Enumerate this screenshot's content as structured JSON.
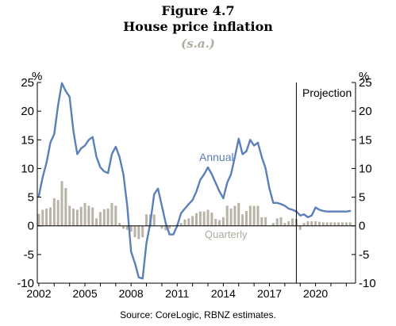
{
  "figure": {
    "number": "Figure 4.7",
    "title": "House price inflation",
    "subtitle": "(s.a.)",
    "source": "Source: CoreLogic, RBNZ estimates."
  },
  "chart_data": {
    "type": "bar+line",
    "ylabel_left": "%",
    "ylabel_right": "%",
    "ylim": [
      -10,
      25
    ],
    "yticks": [
      -10,
      -5,
      0,
      5,
      10,
      15,
      20,
      25
    ],
    "xlim": [
      2001.9,
      2022.6
    ],
    "xticks": [
      2002,
      2005,
      2008,
      2011,
      2014,
      2017,
      2020
    ],
    "xtick_labels": [
      "2002",
      "2005",
      "2008",
      "2011",
      "2014",
      "2017",
      "2020"
    ],
    "projection_start": 2018.75,
    "projection_label": "Projection",
    "grid": false,
    "colors": {
      "annual": "#5b7fb8",
      "quarterly": "#b9b2a6",
      "annual_label": "#5b7fb8",
      "quarterly_label": "#b0a99f"
    },
    "series": [
      {
        "name": "Annual",
        "type": "line",
        "x": [
          2002.0,
          2002.25,
          2002.5,
          2002.75,
          2003.0,
          2003.25,
          2003.5,
          2003.75,
          2004.0,
          2004.25,
          2004.5,
          2004.75,
          2005.0,
          2005.25,
          2005.5,
          2005.75,
          2006.0,
          2006.25,
          2006.5,
          2006.75,
          2007.0,
          2007.25,
          2007.5,
          2007.75,
          2008.0,
          2008.25,
          2008.5,
          2008.75,
          2009.0,
          2009.25,
          2009.5,
          2009.75,
          2010.0,
          2010.25,
          2010.5,
          2010.75,
          2011.0,
          2011.25,
          2011.5,
          2011.75,
          2012.0,
          2012.25,
          2012.5,
          2012.75,
          2013.0,
          2013.25,
          2013.5,
          2013.75,
          2014.0,
          2014.25,
          2014.5,
          2014.75,
          2015.0,
          2015.25,
          2015.5,
          2015.75,
          2016.0,
          2016.25,
          2016.5,
          2016.75,
          2017.0,
          2017.25,
          2017.5,
          2017.75,
          2018.0,
          2018.25,
          2018.5,
          2018.75,
          2019.0,
          2019.25,
          2019.5,
          2019.75,
          2020.0,
          2020.25,
          2020.5,
          2020.75,
          2021.0,
          2021.25,
          2021.5,
          2021.75,
          2022.0,
          2022.25
        ],
        "values": [
          5.2,
          8.5,
          11.0,
          14.5,
          16.0,
          21.0,
          24.9,
          23.5,
          22.5,
          16.5,
          12.5,
          13.5,
          14.0,
          15.0,
          15.5,
          12.0,
          10.2,
          9.5,
          9.2,
          12.5,
          13.8,
          12.0,
          9.0,
          3.5,
          -4.5,
          -6.5,
          -9.0,
          -9.2,
          -3.0,
          0.5,
          5.5,
          6.5,
          3.5,
          0.5,
          -1.5,
          -1.5,
          0.0,
          2.2,
          3.0,
          3.8,
          4.5,
          6.0,
          8.0,
          9.0,
          10.2,
          9.0,
          7.5,
          6.0,
          4.8,
          7.5,
          9.0,
          12.0,
          15.2,
          12.5,
          13.0,
          15.0,
          14.0,
          14.5,
          12.0,
          10.0,
          6.5,
          4.0,
          4.0,
          3.8,
          3.5,
          3.0,
          2.8,
          2.5,
          1.8,
          2.0,
          1.5,
          1.8,
          3.2,
          2.8,
          2.6,
          2.5,
          2.5,
          2.5,
          2.5,
          2.5,
          2.5,
          2.6
        ]
      },
      {
        "name": "Quarterly",
        "type": "bar",
        "x": [
          2002.0,
          2002.25,
          2002.5,
          2002.75,
          2003.0,
          2003.25,
          2003.5,
          2003.75,
          2004.0,
          2004.25,
          2004.5,
          2004.75,
          2005.0,
          2005.25,
          2005.5,
          2005.75,
          2006.0,
          2006.25,
          2006.5,
          2006.75,
          2007.0,
          2007.25,
          2007.5,
          2007.75,
          2008.0,
          2008.25,
          2008.5,
          2008.75,
          2009.0,
          2009.25,
          2009.5,
          2009.75,
          2010.0,
          2010.25,
          2010.5,
          2010.75,
          2011.0,
          2011.25,
          2011.5,
          2011.75,
          2012.0,
          2012.25,
          2012.5,
          2012.75,
          2013.0,
          2013.25,
          2013.5,
          2013.75,
          2014.0,
          2014.25,
          2014.5,
          2014.75,
          2015.0,
          2015.25,
          2015.5,
          2015.75,
          2016.0,
          2016.25,
          2016.5,
          2016.75,
          2017.0,
          2017.25,
          2017.5,
          2017.75,
          2018.0,
          2018.25,
          2018.5,
          2018.75,
          2019.0,
          2019.25,
          2019.5,
          2019.75,
          2020.0,
          2020.25,
          2020.5,
          2020.75,
          2021.0,
          2021.25,
          2021.5,
          2021.75,
          2022.0,
          2022.25
        ],
        "values": [
          2.1,
          2.8,
          3.0,
          3.2,
          4.8,
          4.5,
          7.8,
          6.6,
          3.5,
          3.0,
          2.8,
          3.3,
          4.0,
          3.5,
          3.2,
          1.3,
          2.4,
          2.9,
          3.0,
          4.0,
          3.5,
          0.5,
          -0.5,
          -0.7,
          -1.0,
          -2.0,
          -2.3,
          -2.0,
          2.0,
          2.0,
          2.0,
          0.0,
          -0.5,
          -0.8,
          -0.5,
          0.0,
          0.3,
          0.5,
          1.1,
          1.3,
          1.7,
          2.2,
          2.5,
          2.5,
          2.8,
          2.3,
          1.2,
          1.0,
          1.5,
          3.5,
          3.0,
          3.5,
          4.0,
          2.0,
          2.6,
          3.5,
          3.5,
          3.5,
          1.5,
          1.5,
          0.0,
          0.5,
          1.3,
          1.5,
          0.5,
          0.8,
          1.3,
          1.2,
          -0.7,
          0.5,
          0.8,
          0.8,
          0.8,
          0.7,
          0.6,
          0.6,
          0.6,
          0.6,
          0.6,
          0.6,
          0.6,
          0.6
        ]
      }
    ]
  }
}
